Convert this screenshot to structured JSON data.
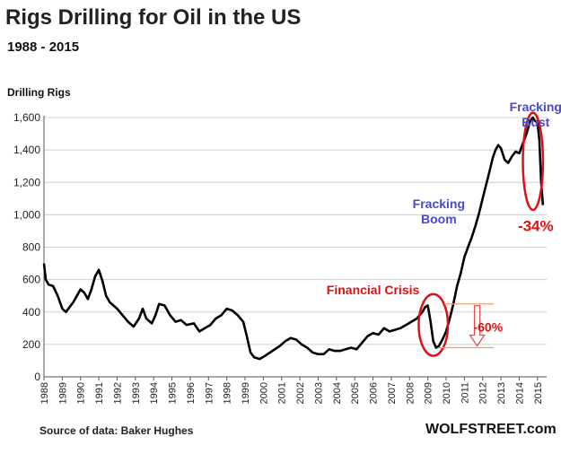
{
  "chart_data": {
    "type": "line",
    "title": "Rigs Drilling for Oil in the US",
    "subtitle": "1988 - 2015",
    "ylabel": "Drilling Rigs",
    "xlabel": "",
    "source": "Source of data: Baker Hughes",
    "brand": "WOLFSTREET.com",
    "xlim": [
      1988,
      2015.5
    ],
    "ylim": [
      0,
      1650
    ],
    "y_ticks": [
      0,
      200,
      400,
      600,
      800,
      1000,
      1200,
      1400,
      1600
    ],
    "y_tick_labels": [
      "0",
      "200",
      "400",
      "600",
      "800",
      "1,000",
      "1,200",
      "1,400",
      "1,600"
    ],
    "x_tick_labels": [
      "1988",
      "1989",
      "1990",
      "1991",
      "1992",
      "1993",
      "1994",
      "1995",
      "1996",
      "1997",
      "1998",
      "1999",
      "2000",
      "2001",
      "2002",
      "2003",
      "2004",
      "2005",
      "2006",
      "2007",
      "2008",
      "2009",
      "2010",
      "2011",
      "2012",
      "2013",
      "2014",
      "2015"
    ],
    "grid": "horizontal",
    "series": [
      {
        "color": "#000000",
        "x": [
          1988.0,
          1988.1,
          1988.25,
          1988.5,
          1988.75,
          1989.0,
          1989.2,
          1989.4,
          1989.6,
          1989.8,
          1990.0,
          1990.2,
          1990.4,
          1990.6,
          1990.8,
          1991.0,
          1991.2,
          1991.4,
          1991.6,
          1991.8,
          1992.0,
          1992.3,
          1992.6,
          1992.9,
          1993.2,
          1993.4,
          1993.6,
          1993.9,
          1994.1,
          1994.3,
          1994.6,
          1994.9,
          1995.2,
          1995.5,
          1995.8,
          1996.2,
          1996.5,
          1996.8,
          1997.1,
          1997.4,
          1997.7,
          1998.0,
          1998.3,
          1998.6,
          1998.9,
          1999.1,
          1999.3,
          1999.5,
          1999.8,
          2000.1,
          2000.5,
          2000.9,
          2001.2,
          2001.5,
          2001.8,
          2002.1,
          2002.4,
          2002.7,
          2003.0,
          2003.3,
          2003.6,
          2003.9,
          2004.2,
          2004.5,
          2004.8,
          2005.1,
          2005.4,
          2005.7,
          2006.0,
          2006.3,
          2006.6,
          2006.9,
          2007.2,
          2007.5,
          2007.8,
          2008.1,
          2008.4,
          2008.7,
          2008.85,
          2009.0,
          2009.15,
          2009.3,
          2009.45,
          2009.6,
          2009.8,
          2010.0,
          2010.2,
          2010.4,
          2010.6,
          2010.8,
          2011.0,
          2011.2,
          2011.4,
          2011.6,
          2011.8,
          2012.0,
          2012.2,
          2012.4,
          2012.55,
          2012.7,
          2012.85,
          2013.0,
          2013.2,
          2013.4,
          2013.6,
          2013.8,
          2014.0,
          2014.2,
          2014.4,
          2014.6,
          2014.75,
          2014.85,
          2015.0,
          2015.1,
          2015.2,
          2015.3
        ],
        "y": [
          700,
          600,
          570,
          560,
          500,
          420,
          400,
          430,
          460,
          500,
          540,
          520,
          480,
          540,
          620,
          660,
          590,
          500,
          460,
          440,
          420,
          380,
          340,
          310,
          360,
          420,
          360,
          330,
          380,
          450,
          440,
          380,
          340,
          350,
          320,
          330,
          280,
          300,
          320,
          360,
          380,
          420,
          410,
          380,
          340,
          250,
          150,
          120,
          110,
          130,
          160,
          190,
          220,
          240,
          230,
          200,
          180,
          150,
          140,
          140,
          170,
          160,
          160,
          170,
          180,
          170,
          210,
          250,
          270,
          260,
          300,
          280,
          290,
          300,
          320,
          340,
          360,
          400,
          430,
          440,
          340,
          220,
          180,
          190,
          230,
          280,
          360,
          450,
          560,
          640,
          740,
          800,
          860,
          930,
          1010,
          1100,
          1190,
          1280,
          1350,
          1400,
          1430,
          1410,
          1340,
          1320,
          1360,
          1390,
          1380,
          1440,
          1500,
          1580,
          1600,
          1580,
          1570,
          1460,
          1200,
          1060
        ]
      }
    ],
    "annotations": [
      {
        "text_lines": [
          "Fracking",
          "Bust"
        ],
        "color": "#4a4ac8",
        "near_x": 2014.9,
        "near_y": 1640
      },
      {
        "text_lines": [
          "Fracking",
          "Boom"
        ],
        "color": "#4a4ac8",
        "near_x": 2009.6,
        "near_y": 1040
      },
      {
        "text": "-34%",
        "color": "#e01010",
        "near_x": 2014.9,
        "near_y": 900
      },
      {
        "text": "Financial Crisis",
        "color": "#e01010",
        "near_x": 2006.0,
        "near_y": 510
      },
      {
        "text": "-60%",
        "color": "#e01010",
        "near_x": 2012.3,
        "near_y": 280
      }
    ],
    "highlight_ellipses": [
      {
        "cx": 2014.75,
        "cy": 1330,
        "rx_years": 0.55,
        "ry": 300
      },
      {
        "cx": 2009.3,
        "cy": 320,
        "rx_years": 0.8,
        "ry": 190
      }
    ],
    "range_marker": {
      "from_y": 450,
      "to_y": 180,
      "x": 2011.7
    }
  }
}
